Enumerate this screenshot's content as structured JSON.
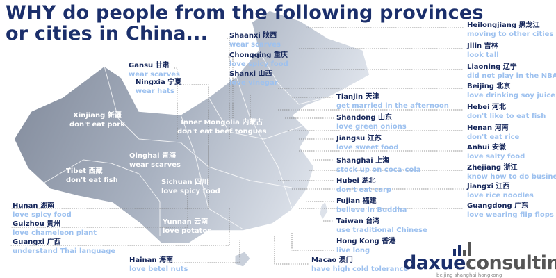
{
  "title": {
    "line1": "WHY do people from the following provinces",
    "line2": "or cities in China..."
  },
  "colors": {
    "title": "#1b2f6b",
    "name": "#15265a",
    "trait": "#9dc1ef",
    "map_light": "#d4dae4",
    "map_dark": "#7c8596"
  },
  "map_labels": [
    {
      "name": "Xinjiang 新疆",
      "trait": "don't eat pork"
    },
    {
      "name": "Inner Mongolia 内蒙古",
      "trait": "don't eat beef tongues"
    },
    {
      "name": "Qinghai 青海",
      "trait": "wear scarves"
    },
    {
      "name": "Tibet 西藏",
      "trait": "don't eat fish"
    },
    {
      "name": "Sichuan 四川",
      "trait": "love spicy food"
    },
    {
      "name": "Yunnan 云南",
      "trait": "love potatos"
    }
  ],
  "callouts": [
    {
      "name": "Gansu 甘肃",
      "trait": "wear scarves"
    },
    {
      "name": "Ningxia 宁夏",
      "trait": "wear hats"
    },
    {
      "name": "Shaanxi 陕西",
      "trait": "wear scarves"
    },
    {
      "name": "Chongqing 重庆",
      "trait": "love spicy food"
    },
    {
      "name": "Shanxi 山西",
      "trait": "love vinegar"
    },
    {
      "name": "Hunan 湖南",
      "trait": "love spicy food"
    },
    {
      "name": "Guizhou 贵州",
      "trait": "love chameleon plant"
    },
    {
      "name": "Guangxi 广西",
      "trait": "understand Thai language"
    },
    {
      "name": "Hainan 海南",
      "trait": "love betel nuts"
    },
    {
      "name": "Tianjin 天津",
      "trait": "get married in the afternoon"
    },
    {
      "name": "Shandong 山东",
      "trait": "love green onions"
    },
    {
      "name": "Jiangsu 江苏",
      "trait": "love sweet food"
    },
    {
      "name": "Shanghai 上海",
      "trait": "stock up on coca-cola"
    },
    {
      "name": "Hubei 湖北",
      "trait": "don't eat carp"
    },
    {
      "name": "Fujian 福建",
      "trait": "believe in Buddha"
    },
    {
      "name": "Taiwan 台湾",
      "trait": "use traditional Chinese"
    },
    {
      "name": "Hong Kong 香港",
      "trait": "live long"
    },
    {
      "name": "Macao 澳门",
      "trait": "have high cold tolerance"
    },
    {
      "name": "Heilongjiang 黑龙江",
      "trait": "moving to other cities"
    },
    {
      "name": "Jilin 吉林",
      "trait": "look tall"
    },
    {
      "name": "Liaoning 辽宁",
      "trait": "did not play in the NBA"
    },
    {
      "name": "Beijing 北京",
      "trait": "love drinking soy juice"
    },
    {
      "name": "Hebei 河北",
      "trait": "don't like to eat fish"
    },
    {
      "name": "Henan 河南",
      "trait": "don't eat rice"
    },
    {
      "name": "Anhui 安徽",
      "trait": "love salty food"
    },
    {
      "name": "Zhejiang 浙江",
      "trait": "know how to do business"
    },
    {
      "name": "Jiangxi 江西",
      "trait": "love rice noodles"
    },
    {
      "name": "Guangdong 广东",
      "trait": "love wearing flip flops"
    }
  ],
  "logo": {
    "part1": "daxue",
    "part2": "consulting",
    "tagline": "beijing shanghai hongkong"
  }
}
